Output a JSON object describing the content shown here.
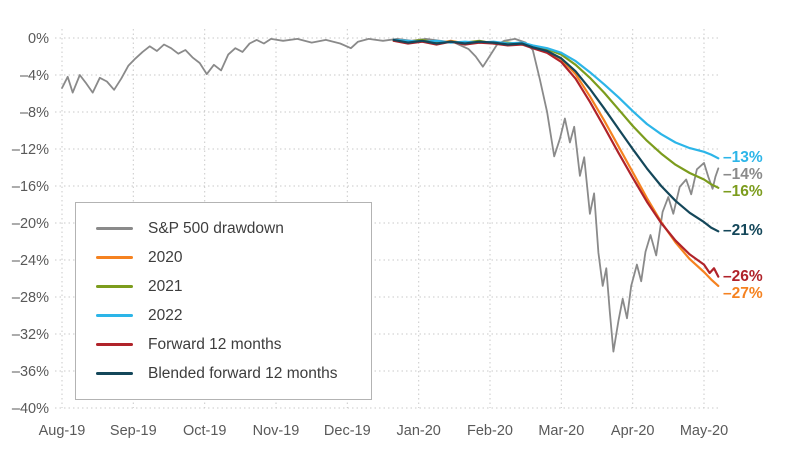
{
  "figure": {
    "background": "#ffffff",
    "grid_color": "#c9c9c9",
    "axis_text_color": "#595959"
  },
  "chart_data": {
    "type": "line",
    "grid": "dotted",
    "legend_position": "lower-left",
    "xlim": [
      0,
      9.45
    ],
    "ylim": [
      -40,
      0
    ],
    "x_tick_positions": [
      0,
      1,
      2,
      3,
      4,
      5,
      6,
      7,
      8,
      9
    ],
    "x_tick_labels": [
      "Aug-19",
      "Sep-19",
      "Oct-19",
      "Nov-19",
      "Dec-19",
      "Jan-20",
      "Feb-20",
      "Mar-20",
      "Apr-20",
      "May-20"
    ],
    "y_tick_values": [
      0,
      -4,
      -8,
      -12,
      -16,
      -20,
      -24,
      -28,
      -32,
      -36,
      -40
    ],
    "y_tick_labels": [
      "0%",
      "–4%",
      "–8%",
      "–12%",
      "–16%",
      "–20%",
      "–24%",
      "–28%",
      "–32%",
      "–36%",
      "–40%"
    ],
    "series": [
      {
        "name": "S&P 500 drawdown",
        "color": "#8a8a8a",
        "stroke_width": 1.8,
        "end_label": "–14%",
        "end_value": -14,
        "points": [
          [
            0,
            -5.4
          ],
          [
            0.08,
            -4.2
          ],
          [
            0.15,
            -5.9
          ],
          [
            0.25,
            -4.0
          ],
          [
            0.33,
            -4.8
          ],
          [
            0.43,
            -5.9
          ],
          [
            0.53,
            -4.3
          ],
          [
            0.63,
            -4.7
          ],
          [
            0.73,
            -5.6
          ],
          [
            0.83,
            -4.4
          ],
          [
            0.93,
            -3.0
          ],
          [
            1.03,
            -2.2
          ],
          [
            1.13,
            -1.5
          ],
          [
            1.23,
            -0.9
          ],
          [
            1.33,
            -1.4
          ],
          [
            1.43,
            -0.7
          ],
          [
            1.53,
            -1.1
          ],
          [
            1.63,
            -1.7
          ],
          [
            1.73,
            -1.3
          ],
          [
            1.83,
            -2.1
          ],
          [
            1.93,
            -2.7
          ],
          [
            2.03,
            -3.9
          ],
          [
            2.13,
            -2.9
          ],
          [
            2.23,
            -3.5
          ],
          [
            2.33,
            -1.8
          ],
          [
            2.43,
            -1.1
          ],
          [
            2.53,
            -1.5
          ],
          [
            2.63,
            -0.6
          ],
          [
            2.73,
            -0.2
          ],
          [
            2.83,
            -0.6
          ],
          [
            2.93,
            -0.1
          ],
          [
            3.1,
            -0.3
          ],
          [
            3.3,
            -0.1
          ],
          [
            3.5,
            -0.5
          ],
          [
            3.7,
            -0.2
          ],
          [
            3.9,
            -0.6
          ],
          [
            4.05,
            -1.1
          ],
          [
            4.15,
            -0.4
          ],
          [
            4.3,
            -0.1
          ],
          [
            4.5,
            -0.3
          ],
          [
            4.7,
            -0.1
          ],
          [
            4.9,
            -0.3
          ],
          [
            5.1,
            -0.1
          ],
          [
            5.3,
            -0.3
          ],
          [
            5.5,
            -0.5
          ],
          [
            5.7,
            -1.2
          ],
          [
            5.8,
            -2.0
          ],
          [
            5.9,
            -3.1
          ],
          [
            6.0,
            -1.9
          ],
          [
            6.1,
            -0.7
          ],
          [
            6.2,
            -0.3
          ],
          [
            6.35,
            -0.1
          ],
          [
            6.5,
            -0.5
          ],
          [
            6.6,
            -1.3
          ],
          [
            6.7,
            -4.5
          ],
          [
            6.8,
            -8.0
          ],
          [
            6.9,
            -12.8
          ],
          [
            6.98,
            -10.9
          ],
          [
            7.05,
            -8.7
          ],
          [
            7.12,
            -11.3
          ],
          [
            7.18,
            -9.6
          ],
          [
            7.26,
            -14.9
          ],
          [
            7.32,
            -12.9
          ],
          [
            7.4,
            -19.0
          ],
          [
            7.46,
            -16.8
          ],
          [
            7.52,
            -23.2
          ],
          [
            7.58,
            -26.8
          ],
          [
            7.63,
            -24.9
          ],
          [
            7.68,
            -29.6
          ],
          [
            7.73,
            -33.9
          ],
          [
            7.8,
            -30.6
          ],
          [
            7.86,
            -28.2
          ],
          [
            7.92,
            -30.3
          ],
          [
            7.98,
            -26.8
          ],
          [
            8.06,
            -24.5
          ],
          [
            8.12,
            -26.3
          ],
          [
            8.18,
            -23.1
          ],
          [
            8.25,
            -21.3
          ],
          [
            8.33,
            -23.5
          ],
          [
            8.42,
            -18.8
          ],
          [
            8.5,
            -17.2
          ],
          [
            8.57,
            -19.0
          ],
          [
            8.66,
            -16.1
          ],
          [
            8.75,
            -15.3
          ],
          [
            8.82,
            -16.9
          ],
          [
            8.9,
            -14.2
          ],
          [
            9.0,
            -13.5
          ],
          [
            9.06,
            -15.0
          ],
          [
            9.12,
            -16.3
          ],
          [
            9.16,
            -15.0
          ],
          [
            9.2,
            -14.1
          ]
        ]
      },
      {
        "name": "2020",
        "color": "#f58220",
        "stroke_width": 2.2,
        "end_label": "–27%",
        "end_value": -27,
        "points": [
          [
            4.65,
            -0.2
          ],
          [
            4.85,
            -0.5
          ],
          [
            5.05,
            -0.3
          ],
          [
            5.25,
            -0.6
          ],
          [
            5.45,
            -0.3
          ],
          [
            5.65,
            -0.6
          ],
          [
            5.85,
            -0.4
          ],
          [
            6.05,
            -0.5
          ],
          [
            6.25,
            -0.7
          ],
          [
            6.45,
            -0.6
          ],
          [
            6.6,
            -0.9
          ],
          [
            6.8,
            -1.4
          ],
          [
            7.0,
            -2.3
          ],
          [
            7.2,
            -3.9
          ],
          [
            7.4,
            -6.3
          ],
          [
            7.6,
            -8.9
          ],
          [
            7.8,
            -11.7
          ],
          [
            8.0,
            -14.5
          ],
          [
            8.2,
            -17.3
          ],
          [
            8.4,
            -19.9
          ],
          [
            8.6,
            -22.1
          ],
          [
            8.8,
            -23.9
          ],
          [
            9.0,
            -25.3
          ],
          [
            9.1,
            -26.1
          ],
          [
            9.2,
            -26.8
          ]
        ]
      },
      {
        "name": "2021",
        "color": "#7c9c1d",
        "stroke_width": 2.2,
        "end_label": "–16%",
        "end_value": -16,
        "points": [
          [
            4.65,
            -0.3
          ],
          [
            4.85,
            -0.4
          ],
          [
            5.05,
            -0.2
          ],
          [
            5.25,
            -0.5
          ],
          [
            5.45,
            -0.4
          ],
          [
            5.65,
            -0.5
          ],
          [
            5.85,
            -0.3
          ],
          [
            6.05,
            -0.6
          ],
          [
            6.25,
            -0.5
          ],
          [
            6.45,
            -0.7
          ],
          [
            6.6,
            -0.9
          ],
          [
            6.8,
            -1.2
          ],
          [
            7.0,
            -1.8
          ],
          [
            7.2,
            -2.9
          ],
          [
            7.4,
            -4.3
          ],
          [
            7.6,
            -5.9
          ],
          [
            7.8,
            -7.7
          ],
          [
            8.0,
            -9.5
          ],
          [
            8.2,
            -11.1
          ],
          [
            8.4,
            -12.5
          ],
          [
            8.6,
            -13.7
          ],
          [
            8.8,
            -14.6
          ],
          [
            9.0,
            -15.3
          ],
          [
            9.1,
            -15.8
          ],
          [
            9.2,
            -16.2
          ]
        ]
      },
      {
        "name": "2022",
        "color": "#2cb5e8",
        "stroke_width": 2.2,
        "end_label": "–13%",
        "end_value": -13,
        "points": [
          [
            4.65,
            -0.2
          ],
          [
            4.85,
            -0.3
          ],
          [
            5.05,
            -0.4
          ],
          [
            5.25,
            -0.3
          ],
          [
            5.45,
            -0.5
          ],
          [
            5.65,
            -0.4
          ],
          [
            5.85,
            -0.5
          ],
          [
            6.05,
            -0.4
          ],
          [
            6.25,
            -0.6
          ],
          [
            6.45,
            -0.5
          ],
          [
            6.6,
            -0.8
          ],
          [
            6.8,
            -1.1
          ],
          [
            7.0,
            -1.6
          ],
          [
            7.2,
            -2.5
          ],
          [
            7.4,
            -3.7
          ],
          [
            7.6,
            -5.0
          ],
          [
            7.8,
            -6.4
          ],
          [
            8.0,
            -7.9
          ],
          [
            8.2,
            -9.3
          ],
          [
            8.4,
            -10.4
          ],
          [
            8.6,
            -11.3
          ],
          [
            8.8,
            -11.9
          ],
          [
            9.0,
            -12.3
          ],
          [
            9.1,
            -12.6
          ],
          [
            9.2,
            -13.0
          ]
        ]
      },
      {
        "name": "Forward 12 months",
        "color": "#b0232a",
        "stroke_width": 2.2,
        "end_label": "–26%",
        "end_value": -26,
        "points": [
          [
            4.65,
            -0.3
          ],
          [
            4.85,
            -0.6
          ],
          [
            5.05,
            -0.4
          ],
          [
            5.25,
            -0.7
          ],
          [
            5.45,
            -0.4
          ],
          [
            5.65,
            -0.7
          ],
          [
            5.85,
            -0.5
          ],
          [
            6.05,
            -0.6
          ],
          [
            6.25,
            -0.8
          ],
          [
            6.45,
            -0.7
          ],
          [
            6.6,
            -1.1
          ],
          [
            6.8,
            -1.6
          ],
          [
            7.0,
            -2.6
          ],
          [
            7.2,
            -4.4
          ],
          [
            7.4,
            -6.9
          ],
          [
            7.6,
            -9.6
          ],
          [
            7.8,
            -12.4
          ],
          [
            8.0,
            -15.1
          ],
          [
            8.2,
            -17.7
          ],
          [
            8.4,
            -20.0
          ],
          [
            8.6,
            -21.9
          ],
          [
            8.8,
            -23.4
          ],
          [
            9.0,
            -24.5
          ],
          [
            9.08,
            -25.4
          ],
          [
            9.14,
            -24.9
          ],
          [
            9.2,
            -25.8
          ]
        ]
      },
      {
        "name": "Blended forward 12 months",
        "color": "#14475a",
        "stroke_width": 2.2,
        "end_label": "–21%",
        "end_value": -21,
        "points": [
          [
            4.65,
            -0.2
          ],
          [
            4.85,
            -0.5
          ],
          [
            5.05,
            -0.3
          ],
          [
            5.25,
            -0.6
          ],
          [
            5.45,
            -0.4
          ],
          [
            5.65,
            -0.6
          ],
          [
            5.85,
            -0.4
          ],
          [
            6.05,
            -0.5
          ],
          [
            6.25,
            -0.7
          ],
          [
            6.45,
            -0.6
          ],
          [
            6.6,
            -1.0
          ],
          [
            6.8,
            -1.4
          ],
          [
            7.0,
            -2.2
          ],
          [
            7.2,
            -3.6
          ],
          [
            7.4,
            -5.5
          ],
          [
            7.6,
            -7.6
          ],
          [
            7.8,
            -9.8
          ],
          [
            8.0,
            -12.0
          ],
          [
            8.2,
            -14.1
          ],
          [
            8.4,
            -16.0
          ],
          [
            8.6,
            -17.6
          ],
          [
            8.8,
            -18.9
          ],
          [
            9.0,
            -19.9
          ],
          [
            9.1,
            -20.5
          ],
          [
            9.2,
            -20.9
          ]
        ]
      }
    ]
  }
}
